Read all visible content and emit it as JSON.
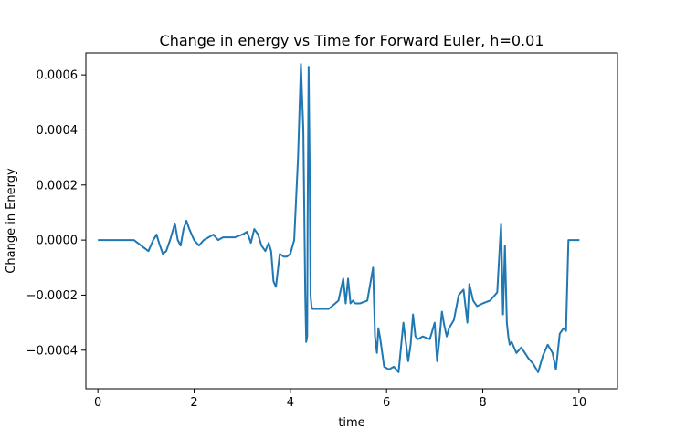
{
  "chart_data": {
    "type": "line",
    "title": "Change in energy vs Time for Forward Euler, h=0.01",
    "xlabel": "time",
    "ylabel": "Change in Energy",
    "xlim": [
      -0.25,
      10.8
    ],
    "ylim": [
      -0.00054,
      0.00068
    ],
    "x_ticks": [
      0,
      2,
      4,
      6,
      8,
      10
    ],
    "x_tick_labels": [
      "0",
      "2",
      "4",
      "6",
      "8",
      "10"
    ],
    "y_ticks": [
      -0.0004,
      -0.0002,
      0.0,
      0.0002,
      0.0004,
      0.0006
    ],
    "y_tick_labels": [
      "−0.0004",
      "−0.0002",
      "0.0000",
      "0.0002",
      "0.0004",
      "0.0006"
    ],
    "grid": false,
    "series": [
      {
        "color": "#1f77b4",
        "x": [
          0,
          0.3,
          0.6,
          0.75,
          0.9,
          1.05,
          1.15,
          1.22,
          1.27,
          1.35,
          1.42,
          1.5,
          1.6,
          1.66,
          1.72,
          1.78,
          1.84,
          1.9,
          2.0,
          2.1,
          2.2,
          2.3,
          2.4,
          2.5,
          2.6,
          2.7,
          2.85,
          3.0,
          3.1,
          3.18,
          3.25,
          3.33,
          3.4,
          3.48,
          3.55,
          3.6,
          3.65,
          3.7,
          3.78,
          3.86,
          3.93,
          4.0,
          4.08,
          4.16,
          4.22,
          4.27,
          4.31,
          4.33,
          4.35,
          4.36,
          4.38,
          4.4,
          4.42,
          4.44,
          4.46,
          4.5,
          4.6,
          4.8,
          5.0,
          5.1,
          5.15,
          5.2,
          5.25,
          5.3,
          5.35,
          5.45,
          5.6,
          5.72,
          5.76,
          5.8,
          5.83,
          5.87,
          5.95,
          6.05,
          6.15,
          6.25,
          6.35,
          6.45,
          6.5,
          6.55,
          6.6,
          6.65,
          6.75,
          6.9,
          7.0,
          7.05,
          7.1,
          7.15,
          7.2,
          7.25,
          7.3,
          7.4,
          7.5,
          7.6,
          7.68,
          7.72,
          7.8,
          7.88,
          8.0,
          8.15,
          8.3,
          8.38,
          8.42,
          8.46,
          8.5,
          8.53,
          8.56,
          8.6,
          8.7,
          8.8,
          8.95,
          9.05,
          9.15,
          9.25,
          9.35,
          9.45,
          9.52,
          9.6,
          9.68,
          9.73,
          9.78,
          9.82,
          9.88,
          9.92,
          9.96,
          10.0,
          10.01
        ],
        "y": [
          0.0,
          0.0,
          0.0,
          0.0,
          -2e-05,
          -4e-05,
          0.0,
          2e-05,
          -1e-05,
          -5e-05,
          -4e-05,
          0.0,
          6e-05,
          0.0,
          -2e-05,
          4e-05,
          7e-05,
          4e-05,
          0.0,
          -2e-05,
          0.0,
          1e-05,
          2e-05,
          0.0,
          1e-05,
          1e-05,
          1e-05,
          2e-05,
          3e-05,
          -1e-05,
          4e-05,
          2e-05,
          -2e-05,
          -4e-05,
          -1e-05,
          -4e-05,
          -0.00015,
          -0.00017,
          -5e-05,
          -6e-05,
          -6e-05,
          -5e-05,
          0.0,
          0.0003,
          0.00064,
          0.0004,
          -0.0002,
          -0.00037,
          -0.00035,
          0.0001,
          0.00063,
          0.0003,
          -0.0002,
          -0.00024,
          -0.00025,
          -0.00025,
          -0.00025,
          -0.00025,
          -0.00022,
          -0.00014,
          -0.00023,
          -0.00014,
          -0.00023,
          -0.00022,
          -0.00023,
          -0.00023,
          -0.00022,
          -0.0001,
          -0.00035,
          -0.00041,
          -0.00032,
          -0.00036,
          -0.00046,
          -0.00047,
          -0.00046,
          -0.00048,
          -0.0003,
          -0.00044,
          -0.00038,
          -0.00027,
          -0.00035,
          -0.00036,
          -0.00035,
          -0.00036,
          -0.0003,
          -0.00044,
          -0.00036,
          -0.00026,
          -0.00031,
          -0.00035,
          -0.00032,
          -0.00029,
          -0.0002,
          -0.00018,
          -0.0003,
          -0.00016,
          -0.00022,
          -0.00024,
          -0.00023,
          -0.00022,
          -0.00019,
          6e-05,
          -0.00027,
          -2e-05,
          -0.0003,
          -0.00035,
          -0.00038,
          -0.00037,
          -0.00041,
          -0.00039,
          -0.00043,
          -0.00045,
          -0.00048,
          -0.00042,
          -0.00038,
          -0.00041,
          -0.00047,
          -0.00034,
          -0.00032,
          -0.00033,
          0.0,
          0.0,
          0.0,
          0.0,
          0.0,
          0.0,
          0.0
        ]
      }
    ]
  }
}
